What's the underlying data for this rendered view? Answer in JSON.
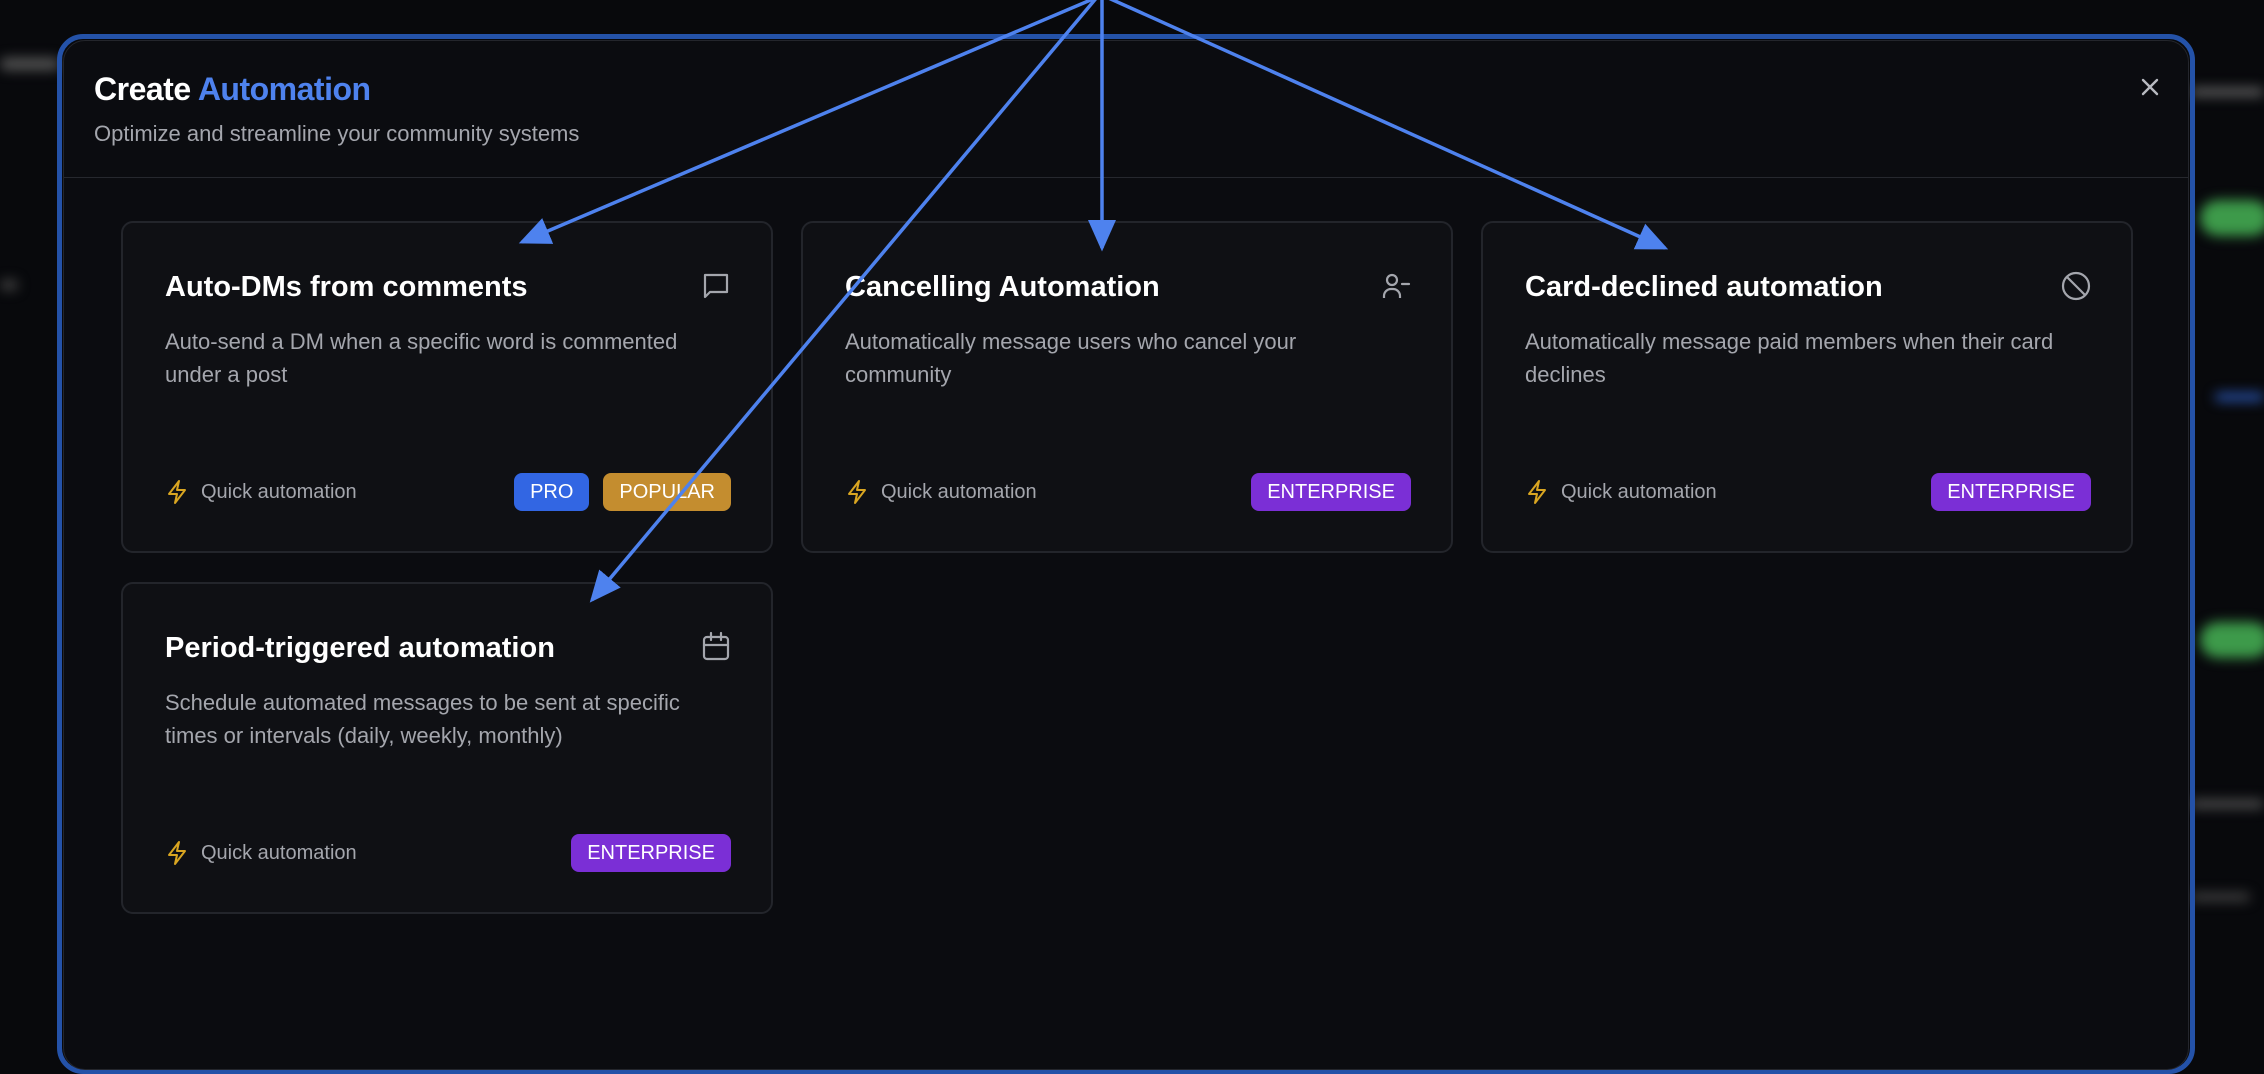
{
  "modal": {
    "title_prefix": "Create",
    "title_accent": "Automation",
    "subtitle": "Optimize and streamline your community systems",
    "close_icon": "close-icon"
  },
  "colors": {
    "accent": "#4e82ee",
    "pro": "#3266e3",
    "popular": "#c48d2f",
    "enterprise": "#7b2fd6",
    "bolt": "#d9a521",
    "arrow": "#4e82ee"
  },
  "cards": [
    {
      "title": "Auto-DMs from comments",
      "description": "Auto-send a DM when a specific word is commented under a post",
      "icon": "message-square-icon",
      "footer": "Quick automation",
      "badges": [
        {
          "label": "PRO",
          "color": "#3266e3"
        },
        {
          "label": "POPULAR",
          "color": "#c48d2f"
        }
      ]
    },
    {
      "title": "Cancelling Automation",
      "description": "Automatically message users who cancel your community",
      "icon": "user-minus-icon",
      "footer": "Quick automation",
      "badges": [
        {
          "label": "ENTERPRISE",
          "color": "#7b2fd6"
        }
      ]
    },
    {
      "title": "Card-declined automation",
      "description": "Automatically message paid members when their card declines",
      "icon": "ban-icon",
      "footer": "Quick automation",
      "badges": [
        {
          "label": "ENTERPRISE",
          "color": "#7b2fd6"
        }
      ]
    },
    {
      "title": "Period-triggered automation",
      "description": "Schedule automated messages to be sent at specific times or intervals (daily, weekly, monthly)",
      "icon": "calendar-icon",
      "footer": "Quick automation",
      "badges": [
        {
          "label": "ENTERPRISE",
          "color": "#7b2fd6"
        }
      ]
    }
  ]
}
